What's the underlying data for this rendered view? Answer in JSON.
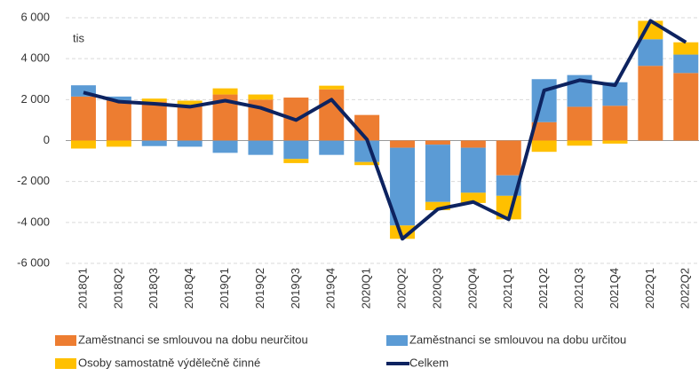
{
  "chart_data": {
    "type": "stacked_bar_line",
    "annotation": "tis",
    "categories": [
      "2018Q1",
      "2018Q2",
      "2018Q3",
      "2018Q4",
      "2019Q1",
      "2019Q2",
      "2019Q3",
      "2019Q4",
      "2020Q1",
      "2020Q2",
      "2020Q3",
      "2020Q4",
      "2021Q1",
      "2021Q2",
      "2021Q3",
      "2021Q4",
      "2022Q1",
      "2022Q2"
    ],
    "series": [
      {
        "name": "Zaměstnanci se smlouvou na dobu neurčitou",
        "color": "#ED7D31",
        "kind": "bar",
        "values": [
          2150,
          1950,
          1900,
          1750,
          2250,
          2000,
          2100,
          2500,
          1250,
          -350,
          -200,
          -350,
          -1700,
          900,
          1650,
          1700,
          3650,
          3300
        ]
      },
      {
        "name": "Zaměstnanci se smlouvou na dobu určitou",
        "color": "#5B9BD5",
        "kind": "bar",
        "values": [
          550,
          200,
          -270,
          -300,
          -600,
          -700,
          -900,
          -700,
          -1050,
          -3800,
          -2800,
          -2200,
          -1000,
          2100,
          1550,
          1150,
          1300,
          900
        ]
      },
      {
        "name": "Osoby samostatně výdělečně činné",
        "color": "#FFC000",
        "kind": "bar",
        "values": [
          -390,
          -300,
          150,
          200,
          300,
          250,
          -200,
          180,
          -150,
          -650,
          -400,
          -500,
          -1150,
          -550,
          -250,
          -150,
          900,
          600
        ]
      },
      {
        "name": "Celkem",
        "color": "#0D2360",
        "kind": "line",
        "values": [
          2350,
          1900,
          1800,
          1650,
          1950,
          1600,
          1000,
          2000,
          50,
          -4800,
          -3350,
          -3000,
          -3850,
          2450,
          2950,
          2700,
          5850,
          4800
        ]
      }
    ],
    "ylim": [
      -6000,
      6000
    ],
    "yticks": [
      {
        "value": -6000,
        "label": "-6 000"
      },
      {
        "value": -4000,
        "label": "-4 000"
      },
      {
        "value": -2000,
        "label": "-2 000"
      },
      0,
      {
        "value": 2000,
        "label": "2 000"
      },
      {
        "value": 4000,
        "label": "4 000"
      },
      {
        "value": 6000,
        "label": "6 000"
      }
    ],
    "grid": true
  }
}
